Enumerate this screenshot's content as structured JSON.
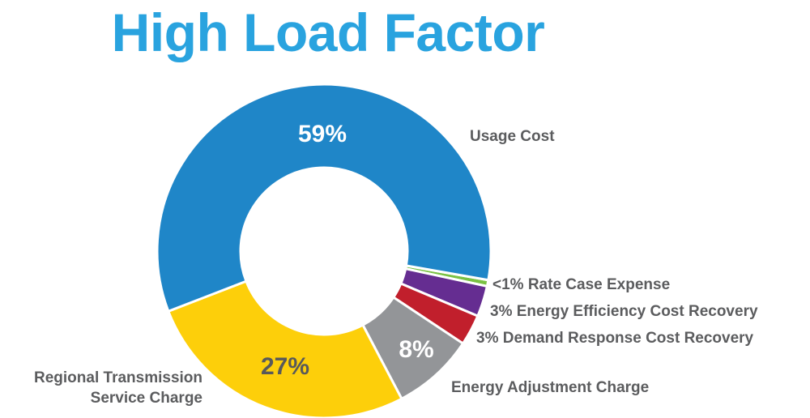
{
  "chart_data": {
    "type": "pie",
    "subtype": "donut",
    "title": "High Load Factor",
    "start_angle_deg_clockwise_from_top": 100,
    "slices": [
      {
        "name": "<1% Rate Case Expense",
        "value": 0.6,
        "color": "#7ac143",
        "pct_label": ""
      },
      {
        "name": "3% Energy Efficiency Cost Recovery",
        "value": 3,
        "color": "#652d91",
        "pct_label": ""
      },
      {
        "name": "3% Demand Response Cost Recovery",
        "value": 3,
        "color": "#c11f2c",
        "pct_label": ""
      },
      {
        "name": "Energy Adjustment Charge",
        "value": 8,
        "color": "#939598",
        "pct_label": "8%"
      },
      {
        "name": "Regional Transmission Service Charge",
        "value": 27,
        "color": "#fdcf0a",
        "pct_label": "27%"
      },
      {
        "name": "Usage Cost",
        "value": 59,
        "color": "#1f86c8",
        "pct_label": "59%"
      }
    ],
    "labels": {
      "usage": "Usage Cost",
      "rate_case": "<1% Rate Case Expense",
      "energy_eff": "3% Energy Efficiency Cost Recovery",
      "demand_resp": "3% Demand Response Cost Recovery",
      "energy_adj": "Energy Adjustment Charge",
      "regional_1": "Regional Transmission",
      "regional_2": "Service Charge"
    }
  }
}
